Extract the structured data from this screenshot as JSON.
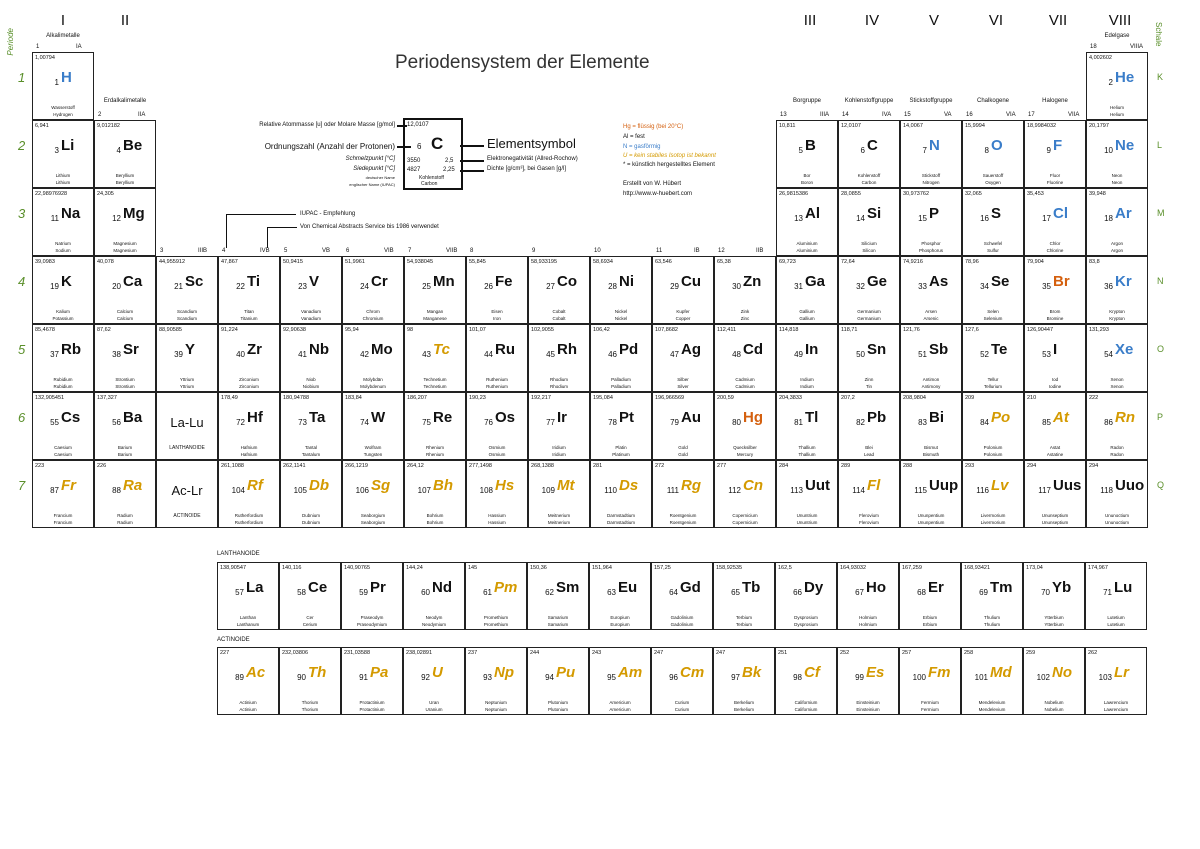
{
  "title": "Periodensystem der Elemente",
  "side": {
    "period_label": "Periode",
    "shell_label": "Schale",
    "periods": [
      "1",
      "2",
      "3",
      "4",
      "5",
      "6",
      "7"
    ],
    "shells": [
      "K",
      "L",
      "M",
      "N",
      "O",
      "P",
      "Q"
    ]
  },
  "groups": {
    "roman": [
      "I",
      "II",
      "III",
      "IV",
      "V",
      "VI",
      "VII",
      "VIII"
    ],
    "names": {
      "alkali": "Alkalimetalle",
      "earth": "Erdalkalimetalle",
      "boron": "Borgruppe",
      "carbon": "Kohlenstoffgruppe",
      "nitrogen": "Stickstoffgruppe",
      "chalcogen": "Chalkogene",
      "halogen": "Halogene",
      "noble": "Edelgase"
    },
    "main_numbers": [
      [
        "1",
        "IA"
      ],
      [
        "2",
        "IIA"
      ],
      [
        "13",
        "IIIA"
      ],
      [
        "14",
        "IVA"
      ],
      [
        "15",
        "VA"
      ],
      [
        "16",
        "VIA"
      ],
      [
        "17",
        "VIIA"
      ],
      [
        "18",
        "VIIIA"
      ]
    ],
    "transition_numbers": [
      [
        "3",
        "IIIB"
      ],
      [
        "4",
        "IVB"
      ],
      [
        "5",
        "VB"
      ],
      [
        "6",
        "VIB"
      ],
      [
        "7",
        "VIIB"
      ],
      [
        "8",
        ""
      ],
      [
        "9",
        ""
      ],
      [
        "10",
        ""
      ],
      [
        "11",
        "IB"
      ],
      [
        "12",
        "IIB"
      ]
    ]
  },
  "legend": {
    "example_mass": "12,0107",
    "example_number": "6",
    "example_symbol": "C",
    "example_mp": "3550",
    "example_bp": "4827",
    "example_en": "2,5",
    "example_density": "2,25",
    "example_de": "Kohlenstoff",
    "example_en_name": "Carbon",
    "label_mass": "Relative Atommasse [u] oder Molare Masse [g/mol]",
    "label_number": "Ordnungszahl (Anzahl der Protonen)",
    "label_mp": "Schmelzpunkt [°C]",
    "label_bp": "Siedepunkt [°C]",
    "label_name_de": "deutscher Name",
    "label_name_en": "englischer Name (IUPAC)",
    "label_symbol": "Elementsymbol",
    "label_en": "Elektronegativität (Allred-Rochow)",
    "label_density": "Dichte [g/cm³], bei Gasen [g/l]",
    "liquid": "Hg = flüssig (bei 20°C)",
    "solid": "Al = fest",
    "gas": "N = gasförmig",
    "radio": "U = kein stabiles Isotop ist bekannt",
    "synthetic": "* = künstlich hergestelltes Element",
    "author": "Erstellt von W. Hübert",
    "url": "http://www.w-huebert.com",
    "iupac": "IUPAC - Empfehlung",
    "cas": "Von Chemical Abstracts Service bis 1986 verwendet",
    "lanthanoid_placeholder": "La-Lu",
    "actinoid_placeholder": "Ac-Lr",
    "lanthanoide": "LANTHANOIDE",
    "actinoide": "ACTINOIDE"
  },
  "colors": {
    "gas": "#3a7dc9",
    "liquid": "#d4600f",
    "radioactive": "#d49a00",
    "shell": "#5a8f2a"
  },
  "elements": [
    [
      1,
      "H",
      "1,00794",
      "Wasserstoff",
      "Hydrogen",
      "g"
    ],
    [
      2,
      "He",
      "4,002602",
      "Helium",
      "Helium",
      "g"
    ],
    [
      3,
      "Li",
      "6,941",
      "Lithium",
      "Lithium",
      "s"
    ],
    [
      4,
      "Be",
      "9,012182",
      "Beryllium",
      "Beryllium",
      "s"
    ],
    [
      5,
      "B",
      "10,811",
      "Bor",
      "Boron",
      "s"
    ],
    [
      6,
      "C",
      "12,0107",
      "Kohlenstoff",
      "Carbon",
      "s"
    ],
    [
      7,
      "N",
      "14,0067",
      "Stickstoff",
      "Nitrogen",
      "g"
    ],
    [
      8,
      "O",
      "15,9994",
      "Sauerstoff",
      "Oxygen",
      "g"
    ],
    [
      9,
      "F",
      "18,9984032",
      "Fluor",
      "Fluorine",
      "g"
    ],
    [
      10,
      "Ne",
      "20,1797",
      "Neon",
      "Neon",
      "g"
    ],
    [
      11,
      "Na",
      "22,98976928",
      "Natrium",
      "Sodium",
      "s"
    ],
    [
      12,
      "Mg",
      "24,305",
      "Magnesium",
      "Magnesium",
      "s"
    ],
    [
      13,
      "Al",
      "26,9815386",
      "Aluminium",
      "Aluminium",
      "s"
    ],
    [
      14,
      "Si",
      "28,0855",
      "Silicium",
      "Silicon",
      "s"
    ],
    [
      15,
      "P",
      "30,973762",
      "Phosphor",
      "Phosphorus",
      "s"
    ],
    [
      16,
      "S",
      "32,065",
      "Schwefel",
      "Sulfur",
      "s"
    ],
    [
      17,
      "Cl",
      "35,453",
      "Chlor",
      "Chlorine",
      "g"
    ],
    [
      18,
      "Ar",
      "39,948",
      "Argon",
      "Argon",
      "g"
    ],
    [
      19,
      "K",
      "39,0983",
      "Kalium",
      "Potassium",
      "s"
    ],
    [
      20,
      "Ca",
      "40,078",
      "Calcium",
      "Calcium",
      "s"
    ],
    [
      21,
      "Sc",
      "44,955912",
      "Scandium",
      "Scandium",
      "s"
    ],
    [
      22,
      "Ti",
      "47,867",
      "Titan",
      "Titanium",
      "s"
    ],
    [
      23,
      "V",
      "50,9415",
      "Vanadium",
      "Vanadium",
      "s"
    ],
    [
      24,
      "Cr",
      "51,9961",
      "Chrom",
      "Chromium",
      "s"
    ],
    [
      25,
      "Mn",
      "54,938045",
      "Mangan",
      "Manganese",
      "s"
    ],
    [
      26,
      "Fe",
      "55,845",
      "Eisen",
      "Iron",
      "s"
    ],
    [
      27,
      "Co",
      "58,933195",
      "Cobalt",
      "Cobalt",
      "s"
    ],
    [
      28,
      "Ni",
      "58,6934",
      "Nickel",
      "Nickel",
      "s"
    ],
    [
      29,
      "Cu",
      "63,546",
      "Kupfer",
      "Copper",
      "s"
    ],
    [
      30,
      "Zn",
      "65,38",
      "Zink",
      "Zinc",
      "s"
    ],
    [
      31,
      "Ga",
      "69,723",
      "Gallium",
      "Gallium",
      "s"
    ],
    [
      32,
      "Ge",
      "72,64",
      "Germanium",
      "Germanium",
      "s"
    ],
    [
      33,
      "As",
      "74,9216",
      "Arsen",
      "Arsenic",
      "s"
    ],
    [
      34,
      "Se",
      "78,96",
      "Selen",
      "Selenium",
      "s"
    ],
    [
      35,
      "Br",
      "79,904",
      "Brom",
      "Bromine",
      "l"
    ],
    [
      36,
      "Kr",
      "83,8",
      "Krypton",
      "Krypton",
      "g"
    ],
    [
      37,
      "Rb",
      "85,4678",
      "Rubidium",
      "Rubidium",
      "s"
    ],
    [
      38,
      "Sr",
      "87,62",
      "Strontium",
      "Strontium",
      "s"
    ],
    [
      39,
      "Y",
      "88,90585",
      "Yttrium",
      "Yttrium",
      "s"
    ],
    [
      40,
      "Zr",
      "91,224",
      "Zirconium",
      "Zirconium",
      "s"
    ],
    [
      41,
      "Nb",
      "92,90638",
      "Niob",
      "Niobium",
      "s"
    ],
    [
      42,
      "Mo",
      "95,94",
      "Molybdän",
      "Molybdenum",
      "s"
    ],
    [
      43,
      "Tc",
      "98",
      "Technetium",
      "Technetium",
      "r"
    ],
    [
      44,
      "Ru",
      "101,07",
      "Ruthenium",
      "Ruthenium",
      "s"
    ],
    [
      45,
      "Rh",
      "102,9055",
      "Rhodium",
      "Rhodium",
      "s"
    ],
    [
      46,
      "Pd",
      "106,42",
      "Palladium",
      "Palladium",
      "s"
    ],
    [
      47,
      "Ag",
      "107,8682",
      "Silber",
      "Silver",
      "s"
    ],
    [
      48,
      "Cd",
      "112,411",
      "Cadmium",
      "Cadmium",
      "s"
    ],
    [
      49,
      "In",
      "114,818",
      "Indium",
      "Indium",
      "s"
    ],
    [
      50,
      "Sn",
      "118,71",
      "Zinn",
      "Tin",
      "s"
    ],
    [
      51,
      "Sb",
      "121,76",
      "Antimon",
      "Antimony",
      "s"
    ],
    [
      52,
      "Te",
      "127,6",
      "Tellur",
      "Tellurium",
      "s"
    ],
    [
      53,
      "I",
      "126,90447",
      "Iod",
      "Iodine",
      "s"
    ],
    [
      54,
      "Xe",
      "131,293",
      "Xenon",
      "Xenon",
      "g"
    ],
    [
      55,
      "Cs",
      "132,905451",
      "Caesium",
      "Caesium",
      "s"
    ],
    [
      56,
      "Ba",
      "137,327",
      "Barium",
      "Barium",
      "s"
    ],
    [
      72,
      "Hf",
      "178,49",
      "Hafnium",
      "Hafnium",
      "s"
    ],
    [
      73,
      "Ta",
      "180,94788",
      "Tantal",
      "Tantalum",
      "s"
    ],
    [
      74,
      "W",
      "183,84",
      "Wolfram",
      "Tungsten",
      "s"
    ],
    [
      75,
      "Re",
      "186,207",
      "Rhenium",
      "Rhenium",
      "s"
    ],
    [
      76,
      "Os",
      "190,23",
      "Osmium",
      "Osmium",
      "s"
    ],
    [
      77,
      "Ir",
      "192,217",
      "Iridium",
      "Iridium",
      "s"
    ],
    [
      78,
      "Pt",
      "195,084",
      "Platin",
      "Platinum",
      "s"
    ],
    [
      79,
      "Au",
      "196,966569",
      "Gold",
      "Gold",
      "s"
    ],
    [
      80,
      "Hg",
      "200,59",
      "Quecksilber",
      "Mercury",
      "l"
    ],
    [
      81,
      "Tl",
      "204,3833",
      "Thallium",
      "Thallium",
      "s"
    ],
    [
      82,
      "Pb",
      "207,2",
      "Blei",
      "Lead",
      "s"
    ],
    [
      83,
      "Bi",
      "208,9804",
      "Bismut",
      "Bismuth",
      "s"
    ],
    [
      84,
      "Po",
      "209",
      "Polonium",
      "Polonium",
      "r"
    ],
    [
      85,
      "At",
      "210",
      "Astat",
      "Astatine",
      "r"
    ],
    [
      86,
      "Rn",
      "222",
      "Radon",
      "Radon",
      "r"
    ],
    [
      87,
      "Fr",
      "223",
      "Francium",
      "Francium",
      "r"
    ],
    [
      88,
      "Ra",
      "226",
      "Radium",
      "Radium",
      "r"
    ],
    [
      104,
      "Rf",
      "261,1088",
      "Rutherfordium",
      "Rutherfordium",
      "r"
    ],
    [
      105,
      "Db",
      "262,1141",
      "Dubnium",
      "Dubnium",
      "r"
    ],
    [
      106,
      "Sg",
      "266,1219",
      "Seaborgium",
      "Seaborgium",
      "r"
    ],
    [
      107,
      "Bh",
      "264,12",
      "Bohrium",
      "Bohrium",
      "r"
    ],
    [
      108,
      "Hs",
      "277,1498",
      "Hassium",
      "Hassium",
      "r"
    ],
    [
      109,
      "Mt",
      "268,1388",
      "Meitnerium",
      "Meitnerium",
      "r"
    ],
    [
      110,
      "Ds",
      "281",
      "Darmstadtium",
      "Darmstadtium",
      "r"
    ],
    [
      111,
      "Rg",
      "272",
      "Roentgenium",
      "Roentgenium",
      "r"
    ],
    [
      112,
      "Cn",
      "277",
      "Copernicium",
      "Copernicium",
      "r"
    ],
    [
      113,
      "Uut",
      "284",
      "Ununtrium",
      "Ununtrium",
      "s"
    ],
    [
      114,
      "Fl",
      "289",
      "Flerovium",
      "Flerovium",
      "r"
    ],
    [
      115,
      "Uup",
      "288",
      "Ununpentium",
      "Ununpentium",
      "s"
    ],
    [
      116,
      "Lv",
      "293",
      "Livermorium",
      "Livermorium",
      "r"
    ],
    [
      117,
      "Uus",
      "294",
      "Ununseptium",
      "Ununseptium",
      "s"
    ],
    [
      118,
      "Uuo",
      "294",
      "Ununoctium",
      "Ununoctium",
      "s"
    ],
    [
      57,
      "La",
      "138,90547",
      "Lanthan",
      "Lanthanum",
      "s"
    ],
    [
      58,
      "Ce",
      "140,116",
      "Cer",
      "Cerium",
      "s"
    ],
    [
      59,
      "Pr",
      "140,90765",
      "Praseodym",
      "Praseodymium",
      "s"
    ],
    [
      60,
      "Nd",
      "144,24",
      "Neodym",
      "Neodymium",
      "s"
    ],
    [
      61,
      "Pm",
      "145",
      "Promethium",
      "Promethium",
      "r"
    ],
    [
      62,
      "Sm",
      "150,36",
      "Samarium",
      "Samarium",
      "s"
    ],
    [
      63,
      "Eu",
      "151,964",
      "Europium",
      "Europium",
      "s"
    ],
    [
      64,
      "Gd",
      "157,25",
      "Gadolinium",
      "Gadolinium",
      "s"
    ],
    [
      65,
      "Tb",
      "158,92535",
      "Terbium",
      "Terbium",
      "s"
    ],
    [
      66,
      "Dy",
      "162,5",
      "Dysprosium",
      "Dysprosium",
      "s"
    ],
    [
      67,
      "Ho",
      "164,93032",
      "Holmium",
      "Holmium",
      "s"
    ],
    [
      68,
      "Er",
      "167,259",
      "Erbium",
      "Erbium",
      "s"
    ],
    [
      69,
      "Tm",
      "168,93421",
      "Thulium",
      "Thulium",
      "s"
    ],
    [
      70,
      "Yb",
      "173,04",
      "Ytterbium",
      "Ytterbium",
      "s"
    ],
    [
      71,
      "Lu",
      "174,967",
      "Lutetium",
      "Lutetium",
      "s"
    ],
    [
      89,
      "Ac",
      "227",
      "Actinium",
      "Actinium",
      "r"
    ],
    [
      90,
      "Th",
      "232,03806",
      "Thorium",
      "Thorium",
      "r"
    ],
    [
      91,
      "Pa",
      "231,03588",
      "Protactinium",
      "Protactinium",
      "r"
    ],
    [
      92,
      "U",
      "238,02891",
      "Uran",
      "Uranium",
      "r"
    ],
    [
      93,
      "Np",
      "237",
      "Neptunium",
      "Neptunium",
      "r"
    ],
    [
      94,
      "Pu",
      "244",
      "Plutonium",
      "Plutonium",
      "r"
    ],
    [
      95,
      "Am",
      "243",
      "Americium",
      "Americium",
      "r"
    ],
    [
      96,
      "Cm",
      "247",
      "Curium",
      "Curium",
      "r"
    ],
    [
      97,
      "Bk",
      "247",
      "Berkelium",
      "Berkelium",
      "r"
    ],
    [
      98,
      "Cf",
      "251",
      "Californium",
      "Californium",
      "r"
    ],
    [
      99,
      "Es",
      "252",
      "Einsteinium",
      "Einsteinium",
      "r"
    ],
    [
      100,
      "Fm",
      "257",
      "Fermium",
      "Fermium",
      "r"
    ],
    [
      101,
      "Md",
      "258",
      "Mendelevium",
      "Mendelevium",
      "r"
    ],
    [
      102,
      "No",
      "259",
      "Nobelium",
      "Nobelium",
      "r"
    ],
    [
      103,
      "Lr",
      "262",
      "Lawrencium",
      "Lawrencium",
      "r"
    ]
  ]
}
